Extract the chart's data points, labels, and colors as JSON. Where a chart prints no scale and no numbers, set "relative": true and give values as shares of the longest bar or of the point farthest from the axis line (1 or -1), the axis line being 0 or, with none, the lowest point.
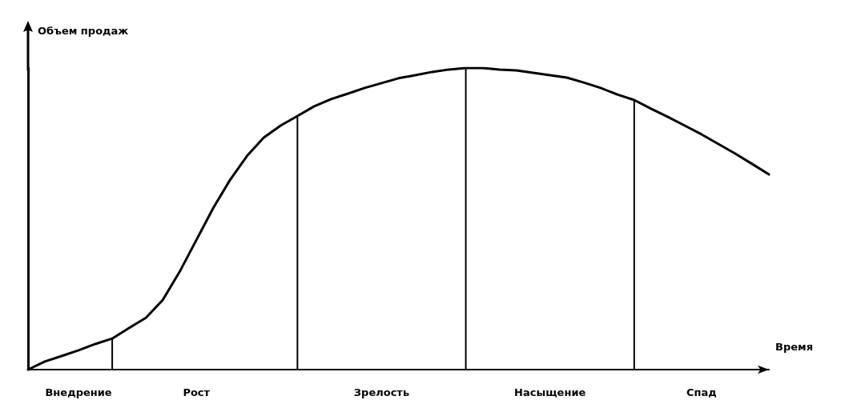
{
  "chart_data": {
    "type": "line",
    "relative": true,
    "xlabel": "Время",
    "ylabel": "Объем продаж",
    "categories": [
      null,
      null,
      null,
      "Внедрение",
      null,
      null,
      null,
      null,
      null,
      null,
      "Рост",
      null,
      null,
      null,
      null,
      null,
      null,
      null,
      null,
      null,
      null,
      "Зрелость",
      null,
      null,
      null,
      null,
      null,
      null,
      null,
      null,
      null,
      "Насыщение",
      null,
      null,
      null,
      null,
      null,
      null,
      null,
      null,
      "Спад",
      null,
      null,
      null,
      null
    ],
    "series": [
      {
        "color": "#000000",
        "values": [
          0,
          0.027,
          0.045,
          0.064,
          0.085,
          0.103,
          0.138,
          0.172,
          0.231,
          0.324,
          0.43,
          0.536,
          0.629,
          0.708,
          0.769,
          0.809,
          0.841,
          0.873,
          0.897,
          0.915,
          0.934,
          0.95,
          0.966,
          0.976,
          0.987,
          0.995,
          1,
          1,
          0.995,
          0.992,
          0.984,
          0.976,
          0.968,
          0.952,
          0.934,
          0.912,
          0.894,
          0.865,
          0.838,
          0.809,
          0.78,
          0.748,
          0.716,
          0.682,
          0.647
        ]
      },
      {
        "type": "bar",
        "color": "#000000",
        "values": [
          null,
          null,
          null,
          null,
          null,
          0.103,
          null,
          null,
          null,
          null,
          null,
          null,
          null,
          null,
          null,
          null,
          0.841,
          null,
          null,
          null,
          null,
          null,
          null,
          null,
          null,
          null,
          1,
          null,
          null,
          null,
          null,
          null,
          null,
          null,
          null,
          null,
          0.894,
          null,
          null,
          null,
          null,
          null,
          null,
          null,
          null
        ]
      }
    ],
    "marker": "none",
    "line_style": "solid",
    "grid": false,
    "tick_labels": "x"
  }
}
